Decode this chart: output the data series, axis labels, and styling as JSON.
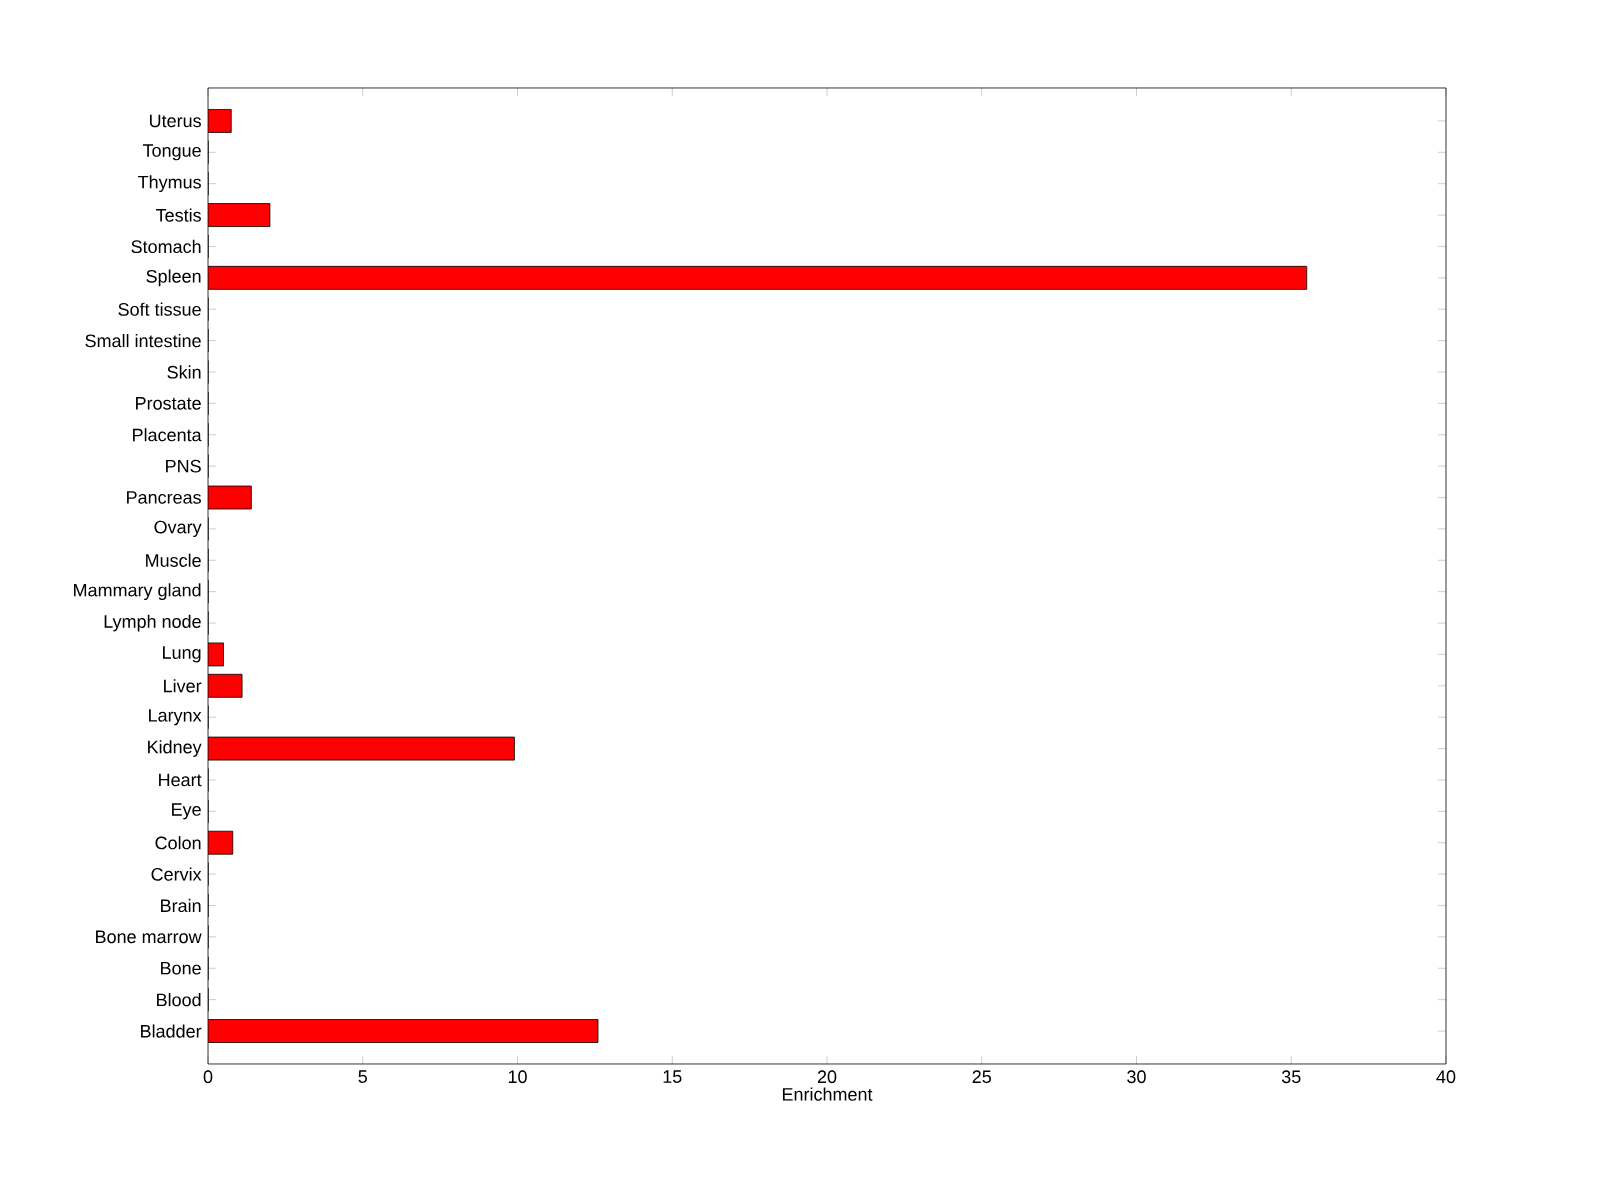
{
  "chart_data": {
    "type": "bar",
    "orientation": "horizontal",
    "xlabel": "Enrichment",
    "categories": [
      "Uterus",
      "Tongue",
      "Thymus",
      "Testis",
      "Stomach",
      "Spleen",
      "Soft tissue",
      "Small intestine",
      "Skin",
      "Prostate",
      "Placenta",
      "PNS",
      "Pancreas",
      "Ovary",
      "Muscle",
      "Mammary gland",
      "Lymph node",
      "Lung",
      "Liver",
      "Larynx",
      "Kidney",
      "Heart",
      "Eye",
      "Colon",
      "Cervix",
      "Brain",
      "Bone marrow",
      "Bone",
      "Blood",
      "Bladder"
    ],
    "values": [
      0.75,
      0,
      0,
      2.0,
      0,
      35.5,
      0,
      0,
      0,
      0,
      0,
      0,
      1.4,
      0,
      0,
      0,
      0,
      0.5,
      1.1,
      0,
      9.9,
      0,
      0,
      0.8,
      0,
      0,
      0,
      0,
      0,
      12.6
    ],
    "color": "#ff0000",
    "xlim": [
      0,
      40
    ],
    "xticks": [
      0,
      5,
      10,
      15,
      20,
      25,
      30,
      35,
      40
    ],
    "grid": false
  }
}
